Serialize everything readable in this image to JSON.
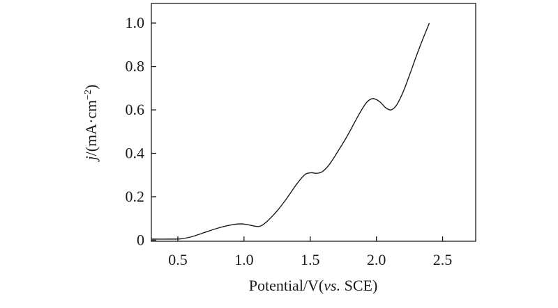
{
  "chart_data": {
    "type": "line",
    "xlabel_prefix": "Potential/V(",
    "xlabel_italic": "vs.",
    "xlabel_suffix": " SCE)",
    "ylabel_italic": "j",
    "ylabel_main": "/(mA·cm",
    "ylabel_sup": "−2",
    "ylabel_close": ")",
    "xlim": [
      0.3,
      2.75
    ],
    "ylim": [
      -0.005,
      1.09
    ],
    "grid": false,
    "legend": "none",
    "xticks": [
      {
        "value": 0.5,
        "label": "0.5"
      },
      {
        "value": 1.0,
        "label": "1.0"
      },
      {
        "value": 1.5,
        "label": "1.5"
      },
      {
        "value": 2.0,
        "label": "2.0"
      },
      {
        "value": 2.5,
        "label": "2.5"
      }
    ],
    "yticks": [
      {
        "value": 0.0,
        "label": "0"
      },
      {
        "value": 0.2,
        "label": "0.2"
      },
      {
        "value": 0.4,
        "label": "0.4"
      },
      {
        "value": 0.6,
        "label": "0.6"
      },
      {
        "value": 0.8,
        "label": "0.8"
      },
      {
        "value": 1.0,
        "label": "1.0"
      }
    ],
    "series": [
      {
        "color": "#1a1a1a",
        "x": [
          0.3,
          0.45,
          0.52,
          0.6,
          0.7,
          0.8,
          0.9,
          0.97,
          1.02,
          1.07,
          1.11,
          1.14,
          1.18,
          1.25,
          1.32,
          1.4,
          1.46,
          1.5,
          1.52,
          1.55,
          1.59,
          1.64,
          1.7,
          1.78,
          1.86,
          1.92,
          1.96,
          1.99,
          2.03,
          2.07,
          2.11,
          2.15,
          2.2,
          2.25,
          2.3,
          2.35,
          2.4
        ],
        "y": [
          0.005,
          0.005,
          0.006,
          0.015,
          0.035,
          0.055,
          0.07,
          0.075,
          0.072,
          0.066,
          0.063,
          0.07,
          0.09,
          0.135,
          0.19,
          0.26,
          0.302,
          0.31,
          0.31,
          0.308,
          0.315,
          0.345,
          0.4,
          0.48,
          0.57,
          0.63,
          0.65,
          0.65,
          0.635,
          0.61,
          0.6,
          0.62,
          0.68,
          0.76,
          0.845,
          0.925,
          1.0
        ]
      }
    ]
  }
}
